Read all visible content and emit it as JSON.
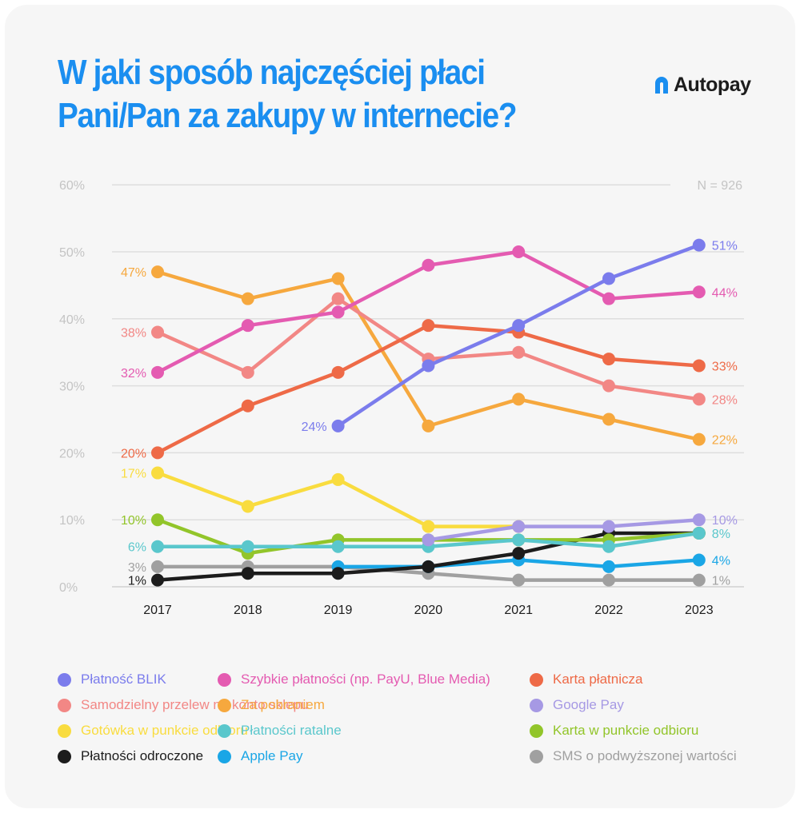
{
  "title": "W jaki sposób najczęściej płaci Pani/Pan za zakupy w internecie?",
  "brand": "Autopay",
  "chart_data": {
    "type": "line",
    "x": [
      "2017",
      "2018",
      "2019",
      "2020",
      "2021",
      "2022",
      "2023"
    ],
    "ylim": [
      0,
      60
    ],
    "yticks": [
      "0%",
      "10%",
      "20%",
      "30%",
      "40%",
      "50%",
      "60%"
    ],
    "note": "N = 926",
    "grid": true,
    "legend_placement": "bottom",
    "series": [
      {
        "name": "Płatność BLIK",
        "color": "#7b7cec",
        "values": [
          null,
          null,
          24,
          33,
          39,
          46,
          51
        ],
        "start_label": "24%",
        "end_label": "51%"
      },
      {
        "name": "Szybkie płatności (np. PayU, Blue Media)",
        "color": "#e45bb1",
        "values": [
          32,
          39,
          41,
          48,
          50,
          43,
          44
        ],
        "start_label": "32%",
        "end_label": "44%"
      },
      {
        "name": "Karta płatnicza",
        "color": "#ee6a47",
        "values": [
          20,
          27,
          32,
          39,
          38,
          34,
          33
        ],
        "start_label": "20%",
        "end_label": "33%"
      },
      {
        "name": "Samodzielny przelew na konto sklepu",
        "color": "#f28785",
        "values": [
          38,
          32,
          43,
          34,
          35,
          30,
          28
        ],
        "start_label": "38%",
        "end_label": "28%"
      },
      {
        "name": "Za pobraniem",
        "color": "#f6a83e",
        "values": [
          47,
          43,
          46,
          24,
          28,
          25,
          22
        ],
        "start_label": "47%",
        "end_label": "22%"
      },
      {
        "name": "Google Pay",
        "color": "#a699e4",
        "values": [
          null,
          null,
          null,
          7,
          9,
          9,
          10
        ],
        "start_label": "",
        "end_label": "10%"
      },
      {
        "name": "Gotówka w punkcie odbioru",
        "color": "#f9dc3f",
        "values": [
          17,
          12,
          16,
          9,
          9,
          null,
          null
        ],
        "start_label": "17%",
        "end_label": ""
      },
      {
        "name": "Płatności ratalne",
        "color": "#5ac7cc",
        "values": [
          6,
          6,
          6,
          6,
          7,
          6,
          8
        ],
        "start_label": "6%",
        "end_label": "8%"
      },
      {
        "name": "Karta w punkcie odbioru",
        "color": "#92c52a",
        "values": [
          10,
          5,
          7,
          7,
          7,
          7,
          8
        ],
        "start_label": "10%",
        "end_label": ""
      },
      {
        "name": "Płatności odroczone",
        "color": "#1c1c1c",
        "values": [
          1,
          2,
          2,
          3,
          5,
          8,
          8
        ],
        "start_label": "1%",
        "end_label": ""
      },
      {
        "name": "Apple Pay",
        "color": "#1aa6e6",
        "values": [
          null,
          null,
          3,
          3,
          4,
          3,
          4
        ],
        "start_label": "",
        "end_label": "4%"
      },
      {
        "name": "SMS o podwyższonej wartości",
        "color": "#a0a0a0",
        "values": [
          3,
          3,
          3,
          2,
          1,
          1,
          1
        ],
        "start_label": "3%",
        "end_label": "1%"
      }
    ]
  }
}
